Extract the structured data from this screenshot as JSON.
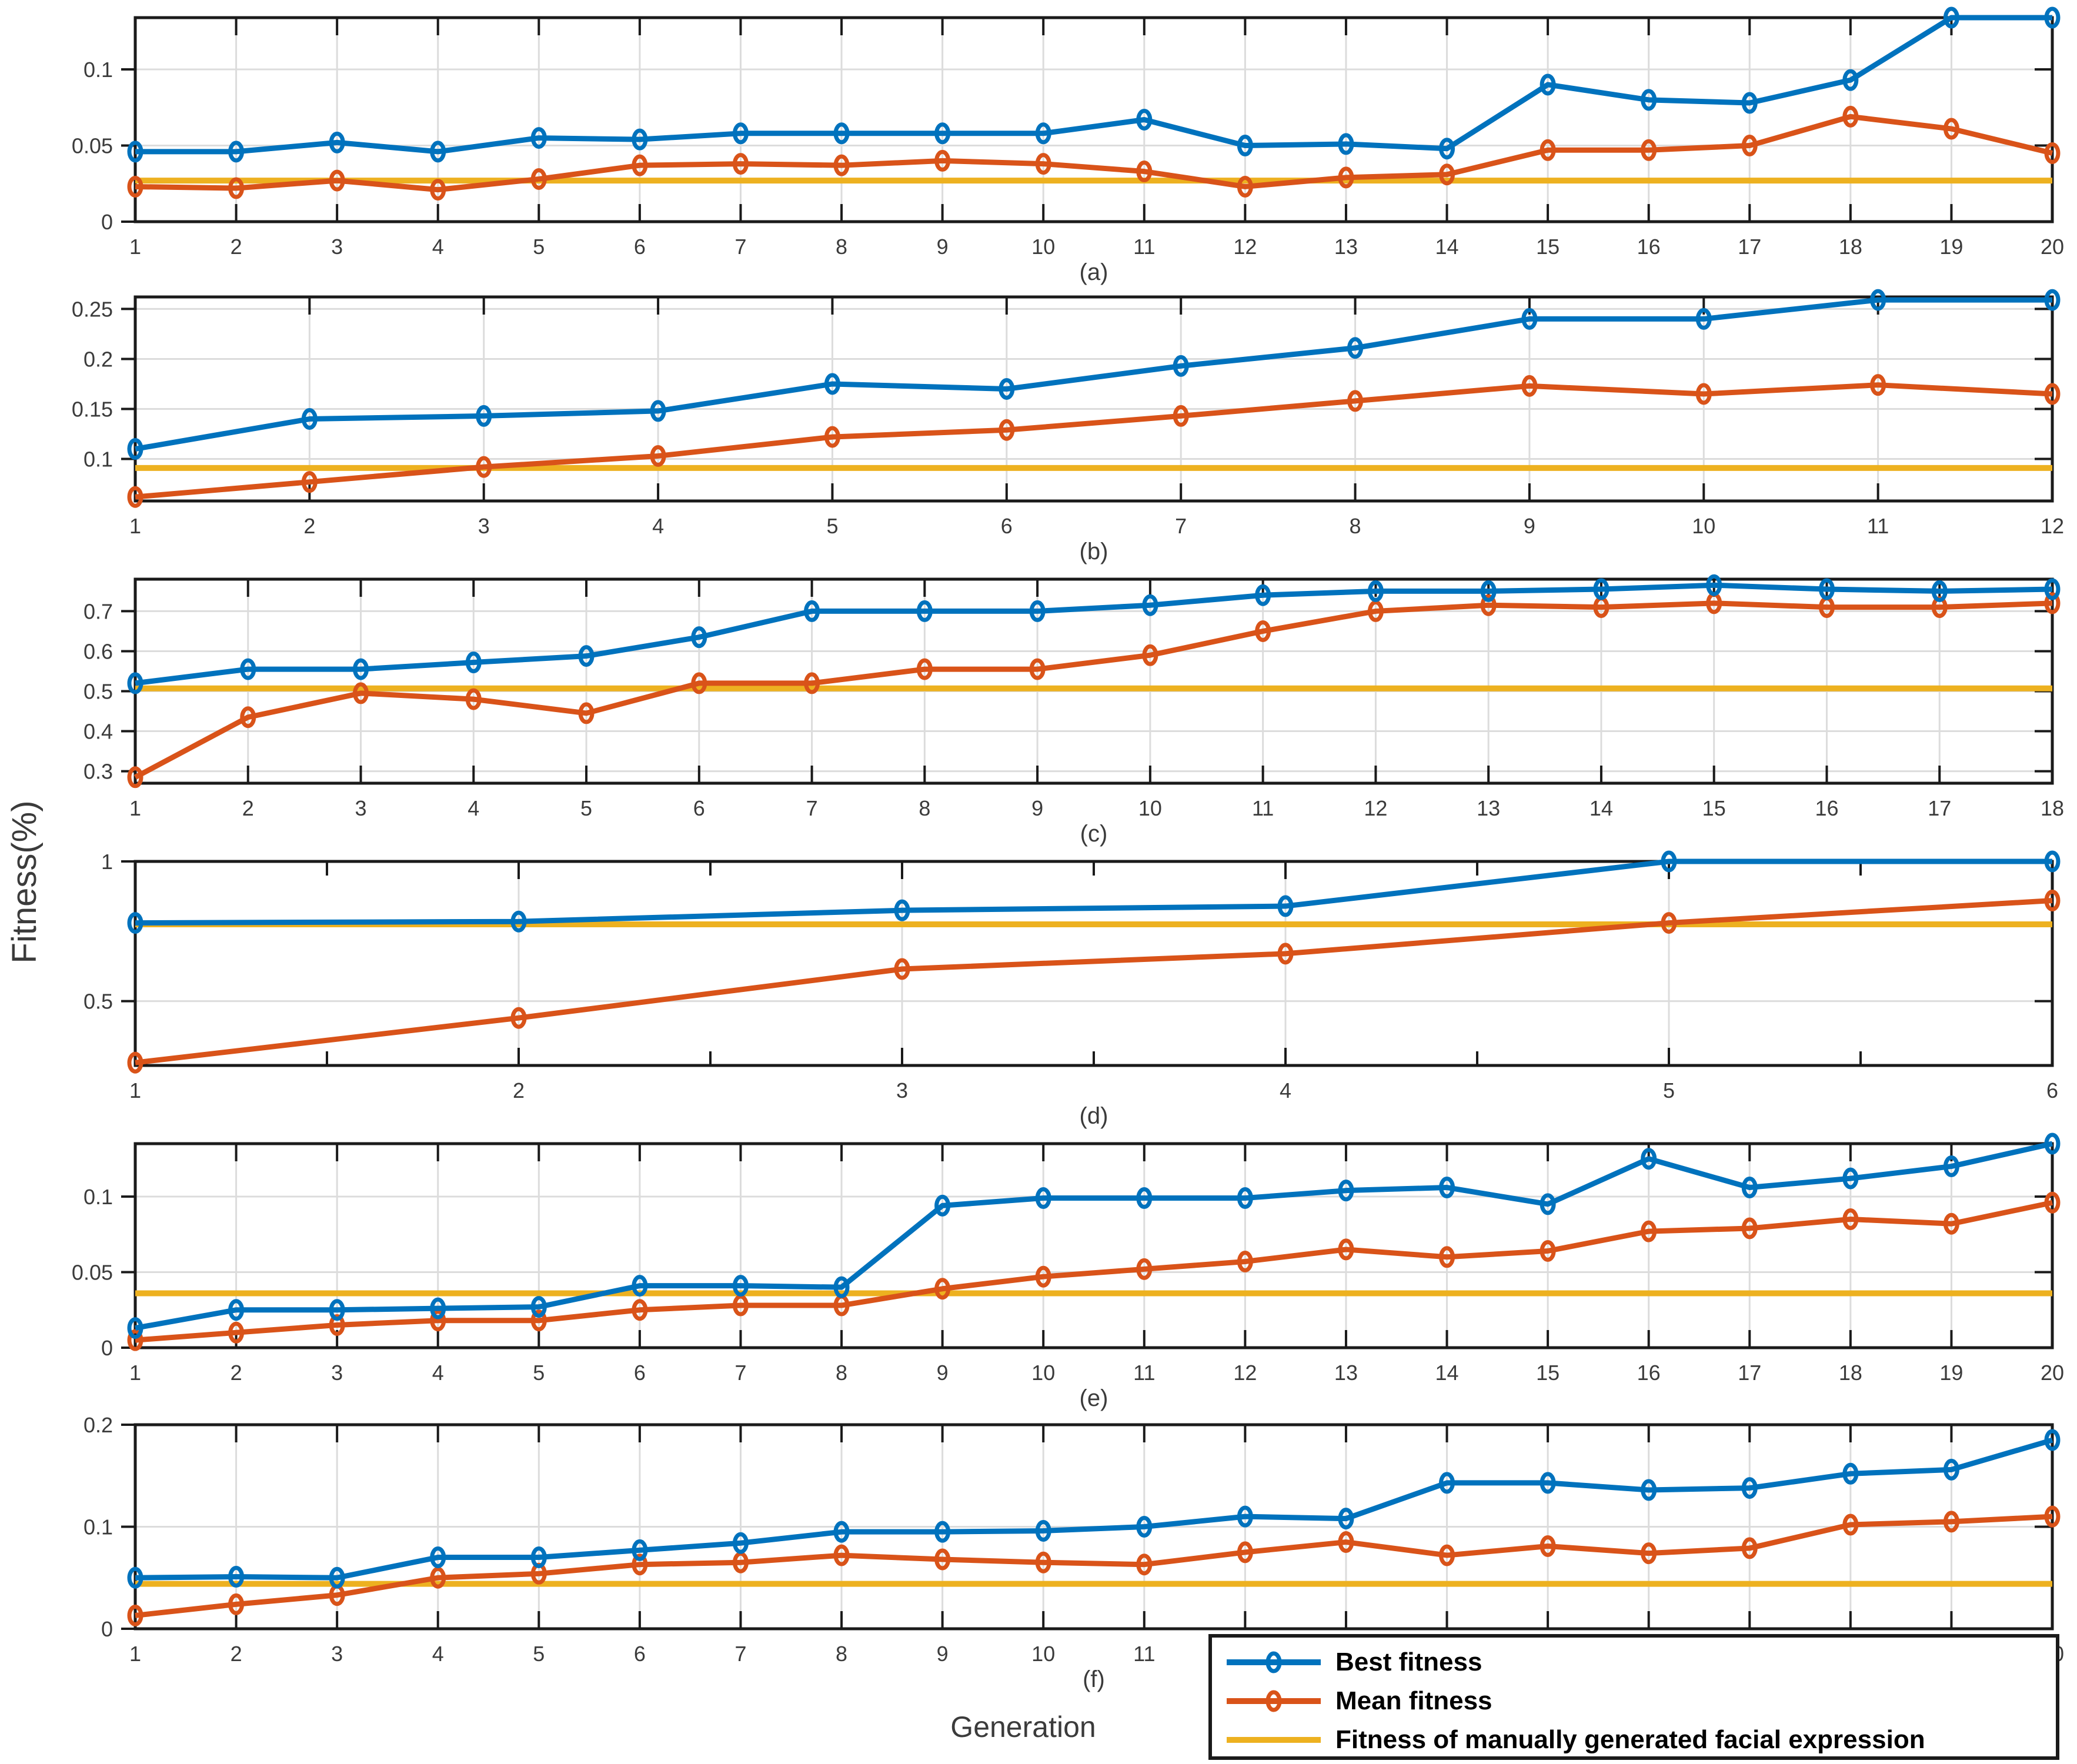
{
  "figure": {
    "xlabel": "Generation",
    "ylabel": "Fitness(%)",
    "colors": {
      "best": "#0072BD",
      "mean": "#D95319",
      "manual": "#EDB120",
      "grid": "#DCDCDC",
      "frame": "#1a1a1a",
      "tick_text": "#3b3b3b"
    },
    "legend": [
      {
        "key": "best",
        "label": "Best fitness",
        "marker": true
      },
      {
        "key": "mean",
        "label": "Mean fitness",
        "marker": true
      },
      {
        "key": "manual",
        "label": "Fitness of manually generated facial expression",
        "marker": false
      }
    ]
  },
  "chart_data": [
    {
      "id": "a",
      "caption": "(a)",
      "type": "line",
      "grid": true,
      "x": [
        1,
        2,
        3,
        4,
        5,
        6,
        7,
        8,
        9,
        10,
        11,
        12,
        13,
        14,
        15,
        16,
        17,
        18,
        19,
        20
      ],
      "ylim": [
        0,
        0.134
      ],
      "yticks": [
        0,
        0.05,
        0.1
      ],
      "ytick_labels": [
        "0",
        "0.05",
        "0.1"
      ],
      "series": [
        {
          "name": "Best fitness",
          "values": [
            0.046,
            0.046,
            0.052,
            0.046,
            0.055,
            0.054,
            0.058,
            0.058,
            0.058,
            0.058,
            0.067,
            0.05,
            0.051,
            0.048,
            0.09,
            0.08,
            0.078,
            0.093,
            0.134,
            0.134
          ]
        },
        {
          "name": "Mean fitness",
          "values": [
            0.023,
            0.022,
            0.027,
            0.021,
            0.028,
            0.037,
            0.038,
            0.037,
            0.04,
            0.038,
            0.033,
            0.023,
            0.029,
            0.031,
            0.047,
            0.047,
            0.05,
            0.069,
            0.061,
            0.045
          ]
        }
      ],
      "manual_fitness": 0.027
    },
    {
      "id": "b",
      "caption": "(b)",
      "type": "line",
      "grid": true,
      "x": [
        1,
        2,
        3,
        4,
        5,
        6,
        7,
        8,
        9,
        10,
        11,
        12
      ],
      "ylim": [
        0.058,
        0.262
      ],
      "yticks": [
        0.1,
        0.15,
        0.2,
        0.25
      ],
      "ytick_labels": [
        "0.1",
        "0.15",
        "0.2",
        "0.25"
      ],
      "series": [
        {
          "name": "Best fitness",
          "values": [
            0.11,
            0.14,
            0.143,
            0.148,
            0.175,
            0.17,
            0.193,
            0.211,
            0.24,
            0.24,
            0.259,
            0.259
          ]
        },
        {
          "name": "Mean fitness",
          "values": [
            0.062,
            0.077,
            0.092,
            0.103,
            0.122,
            0.129,
            0.143,
            0.158,
            0.173,
            0.165,
            0.174,
            0.165
          ]
        }
      ],
      "manual_fitness": 0.091
    },
    {
      "id": "c",
      "caption": "(c)",
      "type": "line",
      "grid": true,
      "x": [
        1,
        2,
        3,
        4,
        5,
        6,
        7,
        8,
        9,
        10,
        11,
        12,
        13,
        14,
        15,
        16,
        17,
        18
      ],
      "ylim": [
        0.27,
        0.78
      ],
      "yticks": [
        0.3,
        0.4,
        0.5,
        0.6,
        0.7
      ],
      "ytick_labels": [
        "0.3",
        "0.4",
        "0.5",
        "0.6",
        "0.7"
      ],
      "series": [
        {
          "name": "Best fitness",
          "values": [
            0.52,
            0.555,
            0.555,
            0.572,
            0.588,
            0.635,
            0.7,
            0.7,
            0.7,
            0.715,
            0.74,
            0.75,
            0.75,
            0.755,
            0.765,
            0.755,
            0.75,
            0.755
          ]
        },
        {
          "name": "Mean fitness",
          "values": [
            0.285,
            0.435,
            0.495,
            0.48,
            0.445,
            0.52,
            0.52,
            0.555,
            0.555,
            0.59,
            0.65,
            0.7,
            0.715,
            0.71,
            0.72,
            0.71,
            0.71,
            0.72
          ]
        }
      ],
      "manual_fitness": 0.507
    },
    {
      "id": "d",
      "caption": "(d)",
      "type": "line",
      "grid": true,
      "x": [
        1,
        2,
        3,
        4,
        5,
        6
      ],
      "minor_xtick_step": 0.5,
      "ylim": [
        0.27,
        1.0
      ],
      "yticks": [
        0.5,
        1
      ],
      "ytick_labels": [
        "0.5",
        "1"
      ],
      "series": [
        {
          "name": "Best fitness",
          "values": [
            0.78,
            0.785,
            0.825,
            0.84,
            1.0,
            1.0
          ]
        },
        {
          "name": "Mean fitness",
          "values": [
            0.28,
            0.44,
            0.615,
            0.67,
            0.78,
            0.86
          ]
        }
      ],
      "manual_fitness": 0.775
    },
    {
      "id": "e",
      "caption": "(e)",
      "type": "line",
      "grid": true,
      "x": [
        1,
        2,
        3,
        4,
        5,
        6,
        7,
        8,
        9,
        10,
        11,
        12,
        13,
        14,
        15,
        16,
        17,
        18,
        19,
        20
      ],
      "ylim": [
        0,
        0.135
      ],
      "yticks": [
        0,
        0.05,
        0.1
      ],
      "ytick_labels": [
        "0",
        "0.05",
        "0.1"
      ],
      "series": [
        {
          "name": "Best fitness",
          "values": [
            0.013,
            0.025,
            0.025,
            0.026,
            0.027,
            0.041,
            0.041,
            0.04,
            0.094,
            0.099,
            0.099,
            0.099,
            0.104,
            0.106,
            0.095,
            0.125,
            0.106,
            0.112,
            0.12,
            0.135
          ]
        },
        {
          "name": "Mean fitness",
          "values": [
            0.005,
            0.01,
            0.015,
            0.018,
            0.018,
            0.025,
            0.028,
            0.028,
            0.039,
            0.047,
            0.052,
            0.057,
            0.065,
            0.06,
            0.064,
            0.077,
            0.079,
            0.085,
            0.082,
            0.096
          ]
        }
      ],
      "manual_fitness": 0.036
    },
    {
      "id": "f",
      "caption": "(f)",
      "type": "line",
      "grid": true,
      "x": [
        1,
        2,
        3,
        4,
        5,
        6,
        7,
        8,
        9,
        10,
        11,
        12,
        13,
        14,
        15,
        16,
        17,
        18,
        19,
        20
      ],
      "ylim": [
        0,
        0.2
      ],
      "yticks": [
        0,
        0.1,
        0.2
      ],
      "ytick_labels": [
        "0",
        "0.1",
        "0.2"
      ],
      "series": [
        {
          "name": "Best fitness",
          "values": [
            0.05,
            0.051,
            0.05,
            0.07,
            0.07,
            0.077,
            0.084,
            0.095,
            0.095,
            0.096,
            0.1,
            0.11,
            0.108,
            0.143,
            0.143,
            0.136,
            0.138,
            0.152,
            0.156,
            0.185
          ]
        },
        {
          "name": "Mean fitness",
          "values": [
            0.013,
            0.024,
            0.033,
            0.05,
            0.054,
            0.063,
            0.065,
            0.072,
            0.068,
            0.065,
            0.063,
            0.075,
            0.085,
            0.072,
            0.081,
            0.074,
            0.079,
            0.102,
            0.105,
            0.11
          ]
        }
      ],
      "manual_fitness": 0.044
    }
  ]
}
